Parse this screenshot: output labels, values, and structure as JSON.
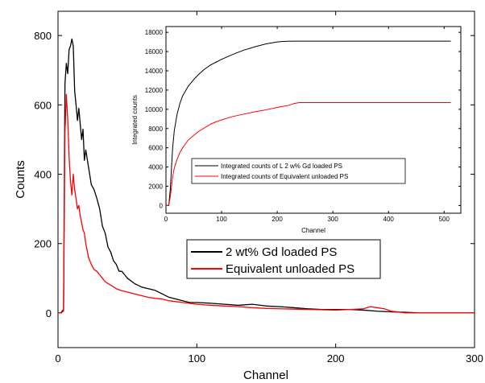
{
  "chart_data": [
    {
      "type": "line",
      "xlabel": "Channel",
      "ylabel": "Counts",
      "xlim": [
        0,
        300
      ],
      "ylim": [
        -100,
        870
      ],
      "xticks": [
        0,
        100,
        200,
        300
      ],
      "yticks": [
        0,
        200,
        400,
        600,
        800
      ],
      "legend_position": "center-right",
      "series": [
        {
          "name": "2 wt% Gd loaded PS",
          "color": "#000000",
          "points": [
            [
              0,
              0
            ],
            [
              2,
              0
            ],
            [
              4,
              10
            ],
            [
              5,
              660
            ],
            [
              6,
              720
            ],
            [
              7,
              690
            ],
            [
              8,
              760
            ],
            [
              9,
              770
            ],
            [
              10,
              790
            ],
            [
              11,
              770
            ],
            [
              12,
              640
            ],
            [
              13,
              600
            ],
            [
              14,
              555
            ],
            [
              15,
              590
            ],
            [
              16,
              545
            ],
            [
              17,
              500
            ],
            [
              18,
              530
            ],
            [
              19,
              440
            ],
            [
              20,
              470
            ],
            [
              22,
              420
            ],
            [
              24,
              370
            ],
            [
              26,
              355
            ],
            [
              28,
              330
            ],
            [
              30,
              300
            ],
            [
              32,
              250
            ],
            [
              34,
              230
            ],
            [
              36,
              190
            ],
            [
              38,
              175
            ],
            [
              40,
              150
            ],
            [
              42,
              140
            ],
            [
              44,
              120
            ],
            [
              46,
              120
            ],
            [
              48,
              110
            ],
            [
              50,
              100
            ],
            [
              55,
              85
            ],
            [
              60,
              75
            ],
            [
              65,
              70
            ],
            [
              70,
              65
            ],
            [
              75,
              55
            ],
            [
              80,
              45
            ],
            [
              85,
              40
            ],
            [
              90,
              35
            ],
            [
              95,
              30
            ],
            [
              100,
              30
            ],
            [
              110,
              28
            ],
            [
              120,
              25
            ],
            [
              130,
              22
            ],
            [
              140,
              25
            ],
            [
              150,
              20
            ],
            [
              160,
              18
            ],
            [
              170,
              15
            ],
            [
              180,
              12
            ],
            [
              190,
              10
            ],
            [
              200,
              10
            ],
            [
              210,
              10
            ],
            [
              220,
              8
            ],
            [
              230,
              5
            ],
            [
              240,
              3
            ],
            [
              250,
              2
            ],
            [
              260,
              0
            ],
            [
              300,
              0
            ]
          ]
        },
        {
          "name": "Equivalent unloaded PS",
          "color": "#ff0000",
          "points": [
            [
              0,
              0
            ],
            [
              2,
              0
            ],
            [
              4,
              5
            ],
            [
              5,
              520
            ],
            [
              6,
              630
            ],
            [
              7,
              560
            ],
            [
              8,
              450
            ],
            [
              9,
              380
            ],
            [
              10,
              340
            ],
            [
              11,
              400
            ],
            [
              12,
              355
            ],
            [
              13,
              330
            ],
            [
              14,
              300
            ],
            [
              15,
              310
            ],
            [
              16,
              280
            ],
            [
              17,
              260
            ],
            [
              18,
              240
            ],
            [
              19,
              230
            ],
            [
              20,
              200
            ],
            [
              21,
              180
            ],
            [
              22,
              160
            ],
            [
              24,
              140
            ],
            [
              26,
              125
            ],
            [
              28,
              120
            ],
            [
              30,
              110
            ],
            [
              32,
              100
            ],
            [
              34,
              90
            ],
            [
              36,
              85
            ],
            [
              38,
              80
            ],
            [
              40,
              75
            ],
            [
              42,
              70
            ],
            [
              45,
              65
            ],
            [
              50,
              60
            ],
            [
              55,
              55
            ],
            [
              60,
              50
            ],
            [
              65,
              45
            ],
            [
              70,
              42
            ],
            [
              75,
              40
            ],
            [
              80,
              35
            ],
            [
              90,
              30
            ],
            [
              100,
              25
            ],
            [
              110,
              22
            ],
            [
              120,
              20
            ],
            [
              130,
              18
            ],
            [
              140,
              15
            ],
            [
              150,
              13
            ],
            [
              160,
              12
            ],
            [
              170,
              11
            ],
            [
              180,
              10
            ],
            [
              190,
              9
            ],
            [
              200,
              8
            ],
            [
              210,
              10
            ],
            [
              220,
              12
            ],
            [
              225,
              18
            ],
            [
              230,
              15
            ],
            [
              235,
              12
            ],
            [
              240,
              5
            ],
            [
              245,
              3
            ],
            [
              250,
              0
            ],
            [
              300,
              0
            ]
          ]
        }
      ]
    },
    {
      "type": "line",
      "xlabel": "Channel",
      "ylabel": "Integrated counts",
      "xlim": [
        0,
        530
      ],
      "ylim": [
        -800,
        18600
      ],
      "xticks": [
        0,
        100,
        200,
        300,
        400,
        500
      ],
      "yticks": [
        0,
        2000,
        4000,
        6000,
        8000,
        10000,
        12000,
        14000,
        16000,
        18000
      ],
      "legend_position": "bottom-left",
      "series": [
        {
          "name": "Integrated counts of L 2 w% Gd loaded PS",
          "color": "#000000",
          "points": [
            [
              0,
              0
            ],
            [
              5,
              0
            ],
            [
              8,
              1800
            ],
            [
              10,
              4000
            ],
            [
              12,
              6000
            ],
            [
              15,
              7800
            ],
            [
              20,
              9500
            ],
            [
              25,
              10600
            ],
            [
              30,
              11400
            ],
            [
              40,
              12400
            ],
            [
              50,
              13100
            ],
            [
              60,
              13700
            ],
            [
              70,
              14200
            ],
            [
              80,
              14600
            ],
            [
              90,
              14900
            ],
            [
              100,
              15200
            ],
            [
              120,
              15700
            ],
            [
              140,
              16150
            ],
            [
              160,
              16500
            ],
            [
              180,
              16800
            ],
            [
              200,
              17000
            ],
            [
              210,
              17050
            ],
            [
              220,
              17070
            ],
            [
              240,
              17080
            ],
            [
              300,
              17080
            ],
            [
              400,
              17080
            ],
            [
              512,
              17080
            ]
          ]
        },
        {
          "name": "Integrated counts of Equivalent unloaded PS",
          "color": "#ff0000",
          "points": [
            [
              0,
              0
            ],
            [
              5,
              0
            ],
            [
              8,
              1000
            ],
            [
              10,
              2000
            ],
            [
              12,
              3000
            ],
            [
              15,
              3900
            ],
            [
              20,
              4800
            ],
            [
              25,
              5500
            ],
            [
              30,
              6000
            ],
            [
              40,
              6800
            ],
            [
              50,
              7300
            ],
            [
              60,
              7750
            ],
            [
              70,
              8100
            ],
            [
              80,
              8450
            ],
            [
              90,
              8700
            ],
            [
              100,
              8900
            ],
            [
              120,
              9250
            ],
            [
              140,
              9500
            ],
            [
              160,
              9750
            ],
            [
              180,
              9950
            ],
            [
              200,
              10200
            ],
            [
              210,
              10300
            ],
            [
              220,
              10400
            ],
            [
              230,
              10600
            ],
            [
              240,
              10700
            ],
            [
              300,
              10700
            ],
            [
              400,
              10700
            ],
            [
              512,
              10700
            ]
          ]
        }
      ]
    }
  ]
}
